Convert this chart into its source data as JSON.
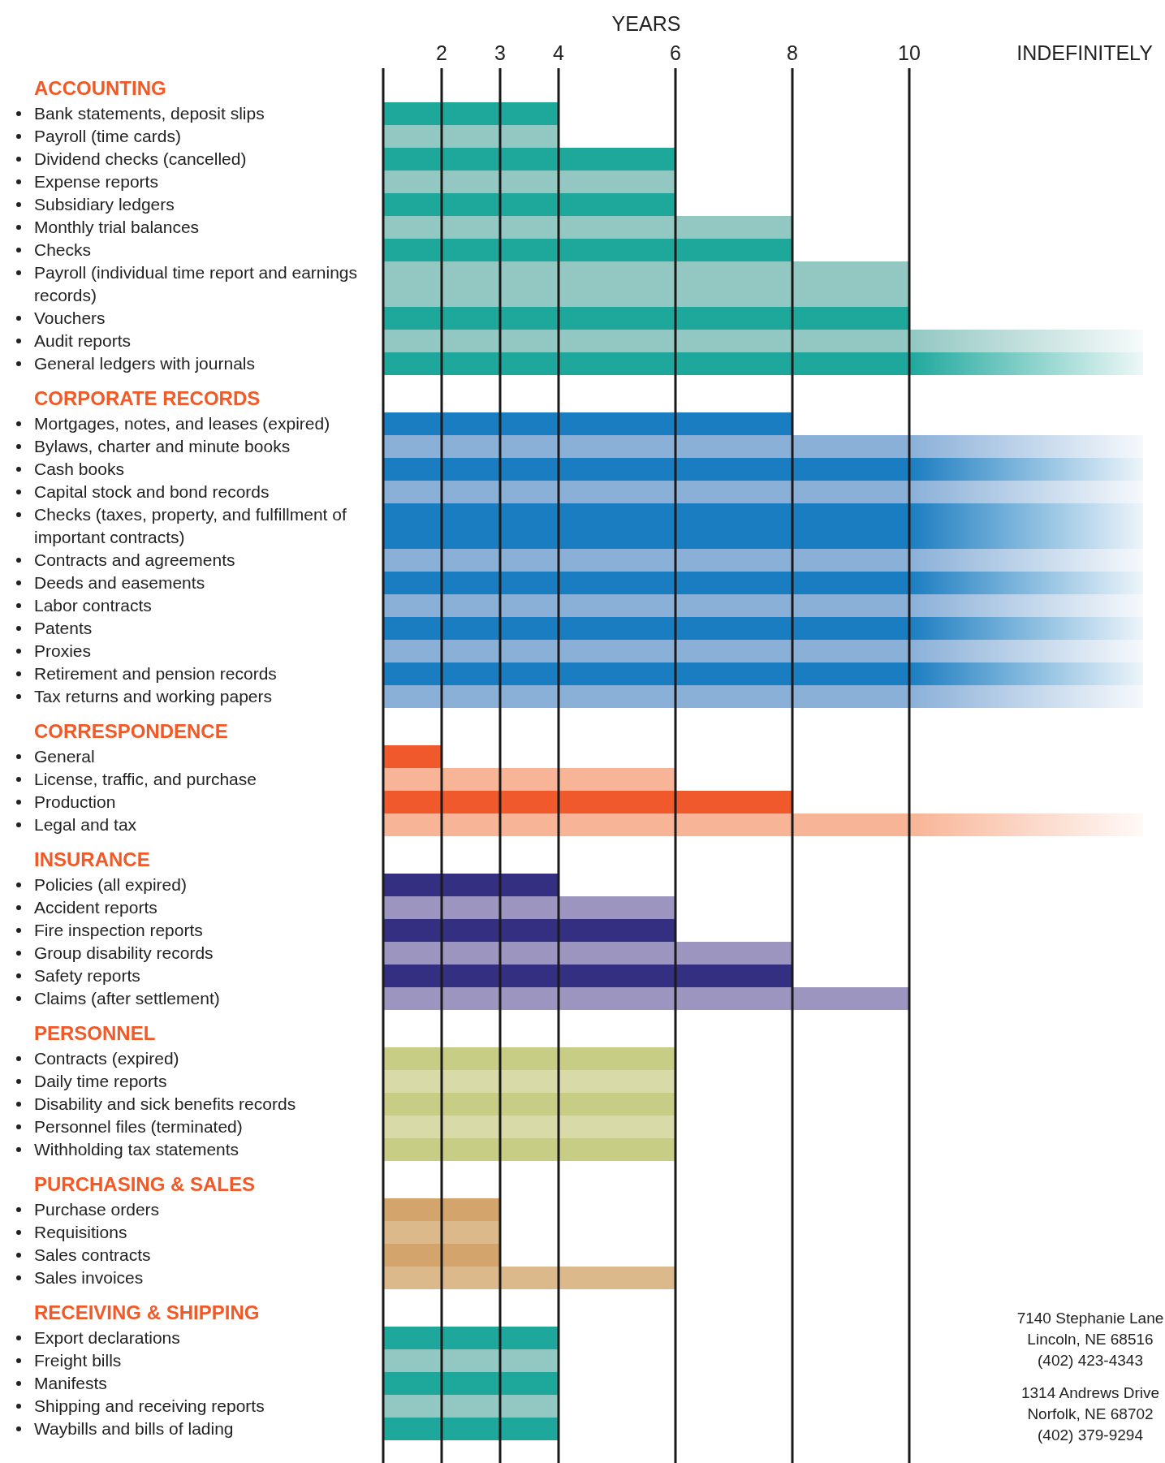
{
  "chart_data": {
    "type": "bar",
    "orientation": "horizontal",
    "xlabel": "YEARS",
    "categories": [
      "ACCOUNTING",
      "Bank statements, deposit slips",
      "Payroll (time cards)",
      "Dividend checks (cancelled)",
      "Expense reports",
      "Subsidiary ledgers",
      "Monthly trial balances",
      "Checks",
      "Payroll (individual time report and earnings records)",
      "Vouchers",
      "Audit reports",
      "General ledgers with journals",
      "CORPORATE RECORDS",
      "Mortgages, notes, and leases (expired)",
      "Bylaws, charter and minute books",
      "Cash books",
      "Capital stock and bond records",
      "Checks (taxes, property, and fulfillment of important contracts)",
      "Contracts and agreements",
      "Deeds and easements",
      "Labor contracts",
      "Patents",
      "Proxies",
      "Retirement and pension records",
      "Tax returns and working papers",
      "CORRESPONDENCE",
      "General",
      "License, traffic, and purchase",
      "Production",
      "Legal and tax",
      "INSURANCE",
      "Policies (all expired)",
      "Accident reports",
      "Fire inspection reports",
      "Group disability records",
      "Safety reports",
      "Claims (after settlement)",
      "PERSONNEL",
      "Contracts (expired)",
      "Daily time reports",
      "Disability and sick benefits records",
      "Personnel files (terminated)",
      "Withholding tax statements",
      "PURCHASING & SALES",
      "Purchase orders",
      "Requisitions",
      "Sales contracts",
      "Sales invoices",
      "RECEIVING & SHIPPING",
      "Export declarations",
      "Freight bills",
      "Manifests",
      "Shipping and receiving reports",
      "Waybills and bills of lading"
    ],
    "values": [
      null,
      4,
      4,
      6,
      6,
      6,
      8,
      8,
      10,
      10,
      14,
      14,
      null,
      8,
      14,
      14,
      14,
      14,
      14,
      14,
      14,
      14,
      14,
      14,
      14,
      null,
      2,
      6,
      8,
      14,
      null,
      4,
      6,
      6,
      8,
      8,
      10,
      null,
      6,
      6,
      6,
      6,
      6,
      null,
      3,
      3,
      3,
      6,
      null,
      4,
      4,
      4,
      4,
      4
    ],
    "colors": [
      null,
      "#1ea89c",
      "#92c7c2",
      "#1ea89c",
      "#92c7c2",
      "#1ea89c",
      "#92c7c2",
      "#1ea89c",
      "#92c7c2",
      "#1ea89c",
      "#92c7c2",
      "#1ea89c",
      null,
      "#1b7dc1",
      "#8ab0d8",
      "#1b7dc1",
      "#8ab0d8",
      "#1b7dc1",
      "#8ab0d8",
      "#1b7dc1",
      "#8ab0d8",
      "#1b7dc1",
      "#8ab0d8",
      "#1b7dc1",
      "#8ab0d8",
      null,
      "#f0592c",
      "#f8b496",
      "#f0592c",
      "#f8b496",
      null,
      "#352f82",
      "#9b95c0",
      "#352f82",
      "#9b95c0",
      "#352f82",
      "#9b95c0",
      null,
      "#c8cd85",
      "#d8dba7",
      "#c8cd85",
      "#d8dba7",
      "#c8cd85",
      null,
      "#d3a46b",
      "#dcb98a",
      "#d3a46b",
      "#dcb98a",
      null,
      "#1ea89c",
      "#92c7c2",
      "#1ea89c",
      "#92c7c2",
      "#1ea89c"
    ],
    "xlim": [
      1,
      14
    ],
    "xticks": [
      2,
      3,
      4,
      6,
      8,
      10,
      {
        "value": 13,
        "label": "INDEFINITELY"
      }
    ],
    "grid": "x",
    "annotations": [
      "7140 Stephanie Lane",
      "Lincoln, NE 68516",
      "(402) 423-4343",
      "1314 Andrews Drive",
      "Norfolk, NE 68702",
      "(402) 379-9294"
    ]
  }
}
